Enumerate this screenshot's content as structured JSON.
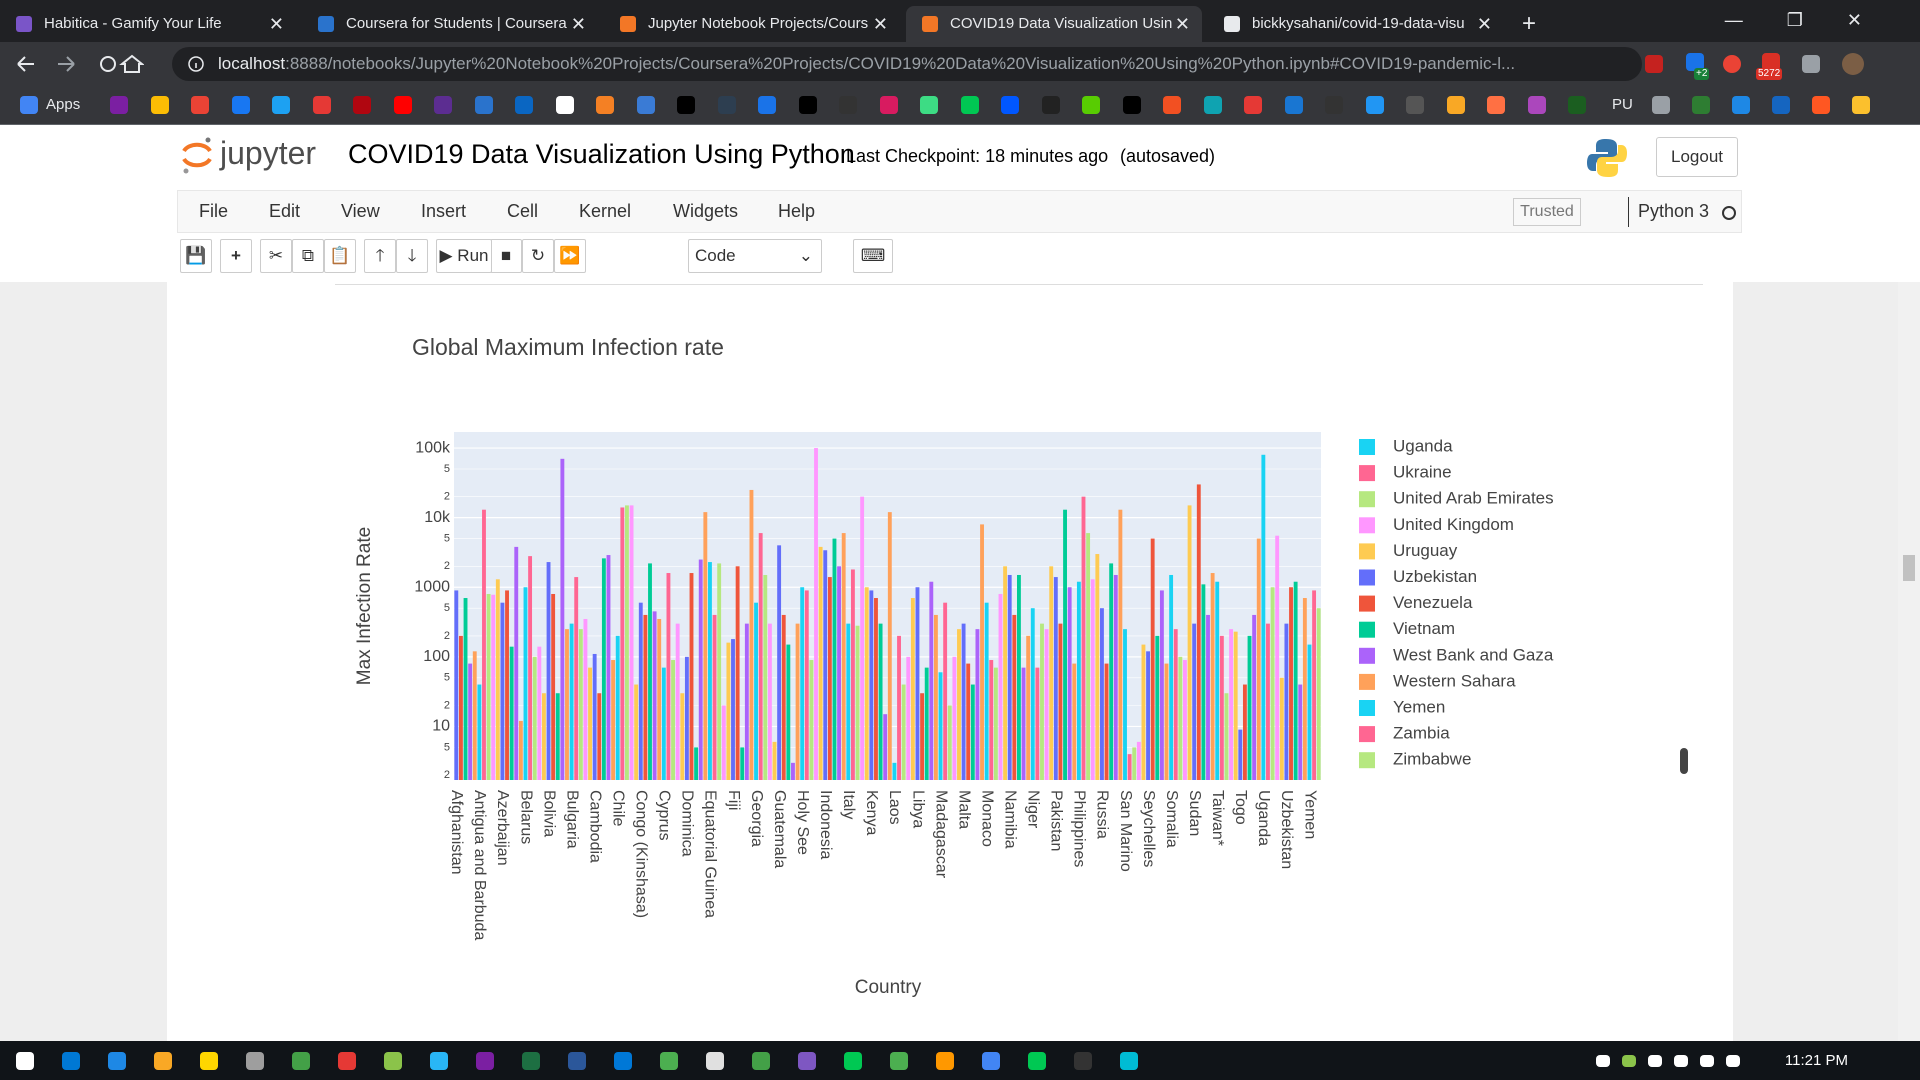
{
  "browser": {
    "tabs": [
      "Habitica - Gamify Your Life",
      "Coursera for Students | Coursera",
      "Jupyter Notebook Projects/Cours",
      "COVID19 Data Visualization Usin",
      "bickkysahani/covid-19-data-visu"
    ],
    "url_host": "localhost",
    "url_path": ":8888/notebooks/Jupyter%20Notebook%20Projects/Coursera%20Projects/COVID19%20Data%20Visualization%20Using%20Python.ipynb#COVID19-pandemic-l...",
    "badges": [
      "+2",
      "5272"
    ],
    "bookmarks": [
      "Apps",
      "PU"
    ]
  },
  "jupyter": {
    "logo": "jupyter",
    "notebook_title": "COVID19 Data Visualization Using Python",
    "checkpoint": "Last Checkpoint: 18 minutes ago",
    "autosaved": "(autosaved)",
    "logout": "Logout",
    "menu": [
      "File",
      "Edit",
      "View",
      "Insert",
      "Cell",
      "Kernel",
      "Widgets",
      "Help"
    ],
    "trusted": "Trusted",
    "kernel": "Python 3",
    "run": "Run",
    "cell_type": "Code"
  },
  "chart_data": {
    "type": "bar",
    "title": "Global Maximum Infection rate",
    "x_label": "Country",
    "y_label": "Max Infection Rate",
    "log": true,
    "grid": true,
    "colors": [
      "#636efa",
      "#EF553B",
      "#00cc96",
      "#ab63fa",
      "#FFA15A",
      "#19d3f3",
      "#FF6692",
      "#B6E880",
      "#FF97FF",
      "#FECB52"
    ],
    "categories": [
      "Afghanistan",
      null,
      null,
      null,
      null,
      "Antigua and Barbuda",
      null,
      null,
      null,
      null,
      "Azerbaijan",
      null,
      null,
      null,
      null,
      "Belarus",
      null,
      null,
      null,
      null,
      "Bolivia",
      null,
      null,
      null,
      null,
      "Bulgaria",
      null,
      null,
      null,
      null,
      "Cambodia",
      null,
      null,
      null,
      null,
      "Chile",
      null,
      null,
      null,
      null,
      "Congo (Kinshasa)",
      null,
      null,
      null,
      null,
      "Cyprus",
      null,
      null,
      null,
      null,
      "Dominica",
      null,
      null,
      null,
      null,
      "Equatorial Guinea",
      null,
      null,
      null,
      null,
      "Fiji",
      null,
      null,
      null,
      null,
      "Georgia",
      null,
      null,
      null,
      null,
      "Guatemala",
      null,
      null,
      null,
      null,
      "Holy See",
      null,
      null,
      null,
      null,
      "Indonesia",
      null,
      null,
      null,
      null,
      "Italy",
      null,
      null,
      null,
      null,
      "Kenya",
      null,
      null,
      null,
      null,
      "Laos",
      null,
      null,
      null,
      null,
      "Libya",
      null,
      null,
      null,
      null,
      "Madagascar",
      null,
      null,
      null,
      null,
      "Malta",
      null,
      null,
      null,
      null,
      "Monaco",
      null,
      null,
      null,
      null,
      "Namibia",
      null,
      null,
      null,
      null,
      "Niger",
      null,
      null,
      null,
      null,
      "Pakistan",
      null,
      null,
      null,
      null,
      "Philippines",
      null,
      null,
      null,
      null,
      "Russia",
      null,
      null,
      null,
      null,
      "San Marino",
      null,
      null,
      null,
      null,
      "Seychelles",
      null,
      null,
      null,
      null,
      "Somalia",
      null,
      null,
      null,
      null,
      "Sudan",
      null,
      null,
      null,
      null,
      "Taiwan*",
      null,
      null,
      null,
      null,
      "Togo",
      null,
      null,
      null,
      null,
      "Uganda",
      null,
      null,
      null,
      null,
      "Uzbekistan",
      null,
      null,
      null,
      null,
      "Yemen",
      null,
      null
    ],
    "values": [
      900,
      200,
      700,
      80,
      120,
      40,
      13000,
      800,
      780,
      1300,
      600,
      900,
      140,
      3800,
      12,
      1000,
      2800,
      100,
      140,
      30,
      2300,
      800,
      30,
      70000,
      250,
      300,
      1400,
      250,
      350,
      70,
      110,
      30,
      2600,
      2900,
      90,
      200,
      14000,
      15000,
      15000,
      40,
      600,
      400,
      2200,
      450,
      350,
      70,
      1600,
      90,
      300,
      30,
      100,
      1600,
      5,
      2500,
      12000,
      2300,
      400,
      2200,
      20,
      160,
      180,
      2000,
      5,
      300,
      25000,
      600,
      6000,
      1500,
      300,
      6,
      4000,
      400,
      150,
      3,
      300,
      1000,
      900,
      90,
      100000,
      3800,
      3400,
      1400,
      5000,
      2000,
      6000,
      300,
      1800,
      280,
      20000,
      1000,
      900,
      700,
      300,
      15,
      12000,
      3,
      200,
      40,
      100,
      700,
      1000,
      30,
      70,
      1200,
      400,
      60,
      600,
      20,
      100,
      250,
      300,
      80,
      40,
      250,
      8000,
      600,
      90,
      70,
      800,
      2000,
      1500,
      400,
      1500,
      70,
      200,
      500,
      70,
      300,
      250,
      2000,
      1400,
      300,
      13000,
      1000,
      80,
      1200,
      20000,
      6000,
      1300,
      3000,
      500,
      80,
      2200,
      1500,
      13000,
      250,
      4,
      5,
      6,
      150,
      120,
      5000,
      200,
      900,
      80,
      1500,
      250,
      100,
      90,
      15000,
      300,
      30000,
      1100,
      400,
      1600,
      1200,
      200,
      30,
      250,
      230,
      9,
      40,
      200,
      400,
      5000,
      80000,
      300,
      1000,
      5500,
      50,
      300,
      1000,
      1200,
      40,
      700,
      150,
      900,
      500
    ],
    "ylim": [
      1.7,
      170000
    ],
    "yticks": [
      2,
      5,
      10,
      {
        "value": 20,
        "label": "2"
      },
      {
        "value": 50,
        "label": "5"
      },
      100,
      {
        "value": 200,
        "label": "2"
      },
      {
        "value": 500,
        "label": "5"
      },
      1000,
      {
        "value": 2000,
        "label": "2"
      },
      {
        "value": 5000,
        "label": "5"
      },
      {
        "value": 10000,
        "label": "10k"
      },
      {
        "value": 20000,
        "label": "2"
      },
      {
        "value": 50000,
        "label": "5"
      },
      {
        "value": 100000,
        "label": "100k"
      }
    ],
    "legend": [
      {
        "name": "Uganda",
        "color": "#19d3f3"
      },
      {
        "name": "Ukraine",
        "color": "#FF6692"
      },
      {
        "name": "United Arab Emirates",
        "color": "#B6E880"
      },
      {
        "name": "United Kingdom",
        "color": "#FF97FF"
      },
      {
        "name": "Uruguay",
        "color": "#FECB52"
      },
      {
        "name": "Uzbekistan",
        "color": "#636efa"
      },
      {
        "name": "Venezuela",
        "color": "#EF553B"
      },
      {
        "name": "Vietnam",
        "color": "#00cc96"
      },
      {
        "name": "West Bank and Gaza",
        "color": "#ab63fa"
      },
      {
        "name": "Western Sahara",
        "color": "#FFA15A"
      },
      {
        "name": "Yemen",
        "color": "#19d3f3"
      },
      {
        "name": "Zambia",
        "color": "#FF6692"
      },
      {
        "name": "Zimbabwe",
        "color": "#B6E880"
      }
    ]
  },
  "taskbar": {
    "clock": "11:21 PM"
  }
}
